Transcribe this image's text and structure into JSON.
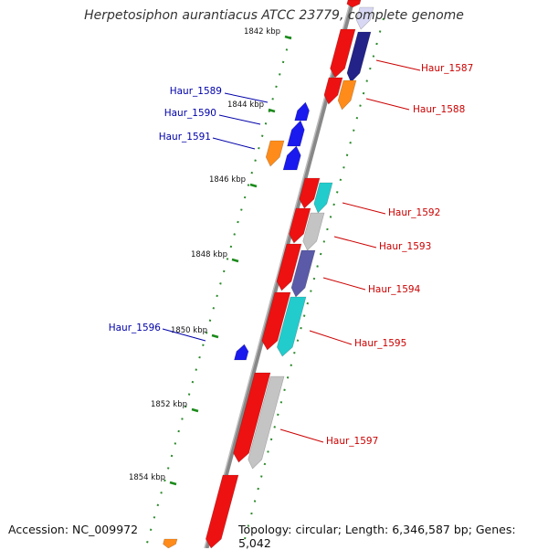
{
  "title": "Herpetosiphon aurantiacus ATCC 23779, complete genome",
  "accession": "Accession: NC_009972",
  "topology": "Topology: circular; Length: 6,346,587 bp; Genes: 5,042",
  "colors": {
    "red": "#ee1111",
    "blue": "#1a1aee",
    "orange": "#ff8c1a",
    "navy": "#222288",
    "cyan": "#22cccc",
    "gray": "#c4c4c4",
    "slate": "#5a5aa8",
    "lavender": "#d8d8f4",
    "forward_label": "#cc0000",
    "reverse_label": "#0000aa",
    "tick": "#1a8a1a"
  },
  "ticks": [
    "1842 kbp",
    "1844 kbp",
    "1846 kbp",
    "1848 kbp",
    "1850 kbp",
    "1852 kbp",
    "1854 kbp"
  ],
  "forward_labels": [
    "Haur_1587",
    "Haur_1588",
    "Haur_1592",
    "Haur_1593",
    "Haur_1594",
    "Haur_1595",
    "Haur_1597"
  ],
  "reverse_labels": [
    "Haur_1589",
    "Haur_1590",
    "Haur_1591",
    "Haur_1596"
  ]
}
